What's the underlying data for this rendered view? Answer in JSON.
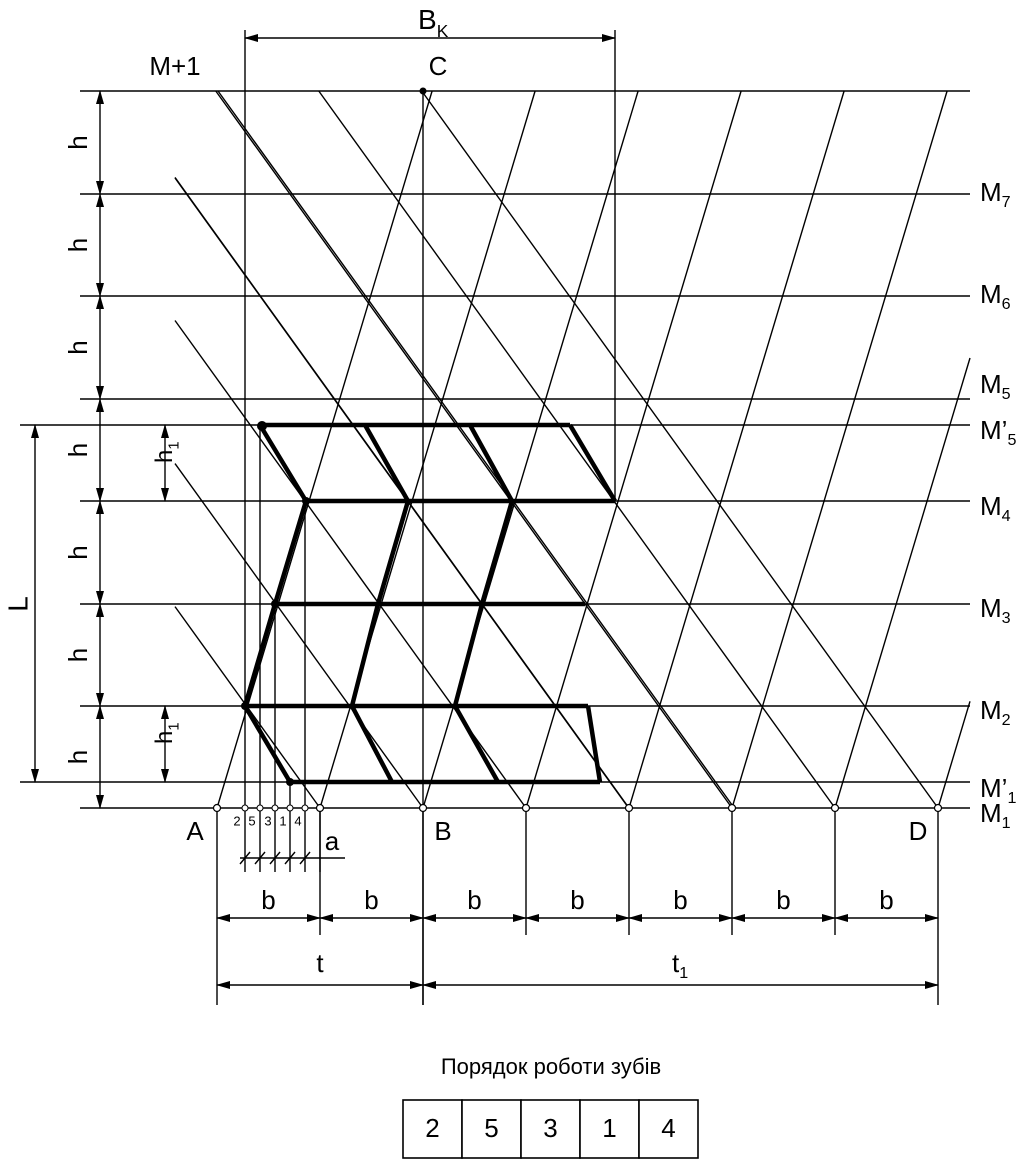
{
  "top_labels": {
    "bk": {
      "base": "B",
      "sub": "K"
    },
    "m_plus_1": "M+1",
    "c": "C"
  },
  "h_labels": [
    "h",
    "h",
    "h",
    "h",
    "h",
    "h",
    "h"
  ],
  "h1_labels": [
    {
      "base": "h",
      "sub": "1"
    },
    {
      "base": "h",
      "sub": "1"
    }
  ],
  "l_label": "L",
  "points": {
    "a": "A",
    "b": "B",
    "d": "D"
  },
  "step_label": "a",
  "tooth_numbers": [
    "2",
    "5",
    "3",
    "1",
    "4"
  ],
  "b_labels": [
    "b",
    "b",
    "b",
    "b",
    "b",
    "b",
    "b"
  ],
  "t_label": "t",
  "t1_label": {
    "base": "t",
    "sub": "1"
  },
  "level_labels": [
    {
      "base": "M",
      "sub": "7"
    },
    {
      "base": "M",
      "sub": "6"
    },
    {
      "base": "M",
      "sub": "5"
    },
    {
      "base": "M’",
      "sub": "5"
    },
    {
      "base": "M",
      "sub": "4"
    },
    {
      "base": "M",
      "sub": "3"
    },
    {
      "base": "M",
      "sub": "2"
    },
    {
      "base": "M’",
      "sub": "1"
    },
    {
      "base": "M",
      "sub": "1"
    }
  ],
  "caption": "Порядок роботи зубів",
  "order_table": [
    "2",
    "5",
    "3",
    "1",
    "4"
  ]
}
